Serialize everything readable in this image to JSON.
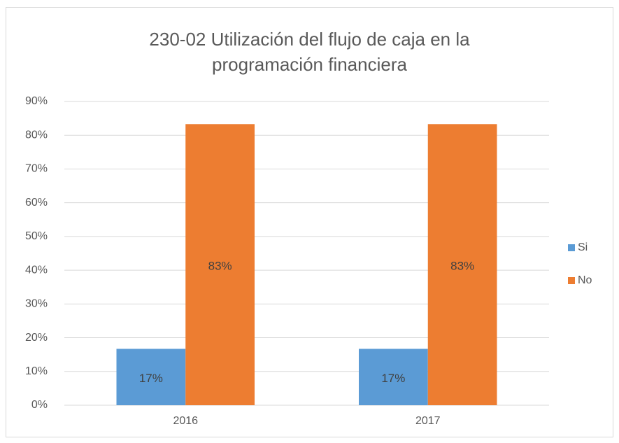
{
  "chart_data": {
    "type": "bar",
    "title": "230-02 Utilización del flujo de caja en la programación financiera",
    "categories": [
      "2016",
      "2017"
    ],
    "series": [
      {
        "name": "Si",
        "color": "#5b9bd5",
        "values": [
          16.7,
          16.7
        ],
        "value_labels": [
          "17%",
          "17%"
        ]
      },
      {
        "name": "No",
        "color": "#ed7d31",
        "values": [
          83.3,
          83.3
        ],
        "value_labels": [
          "83%",
          "83%"
        ]
      }
    ],
    "ylim": [
      0,
      90
    ],
    "yticks": [
      {
        "value": 0,
        "label": "0%"
      },
      {
        "value": 10,
        "label": "10%"
      },
      {
        "value": 20,
        "label": "20%"
      },
      {
        "value": 30,
        "label": "30%"
      },
      {
        "value": 40,
        "label": "40%"
      },
      {
        "value": 50,
        "label": "50%"
      },
      {
        "value": 60,
        "label": "60%"
      },
      {
        "value": 70,
        "label": "70%"
      },
      {
        "value": 80,
        "label": "80%"
      },
      {
        "value": 90,
        "label": "90%"
      }
    ],
    "grid": true,
    "legend": "right"
  }
}
